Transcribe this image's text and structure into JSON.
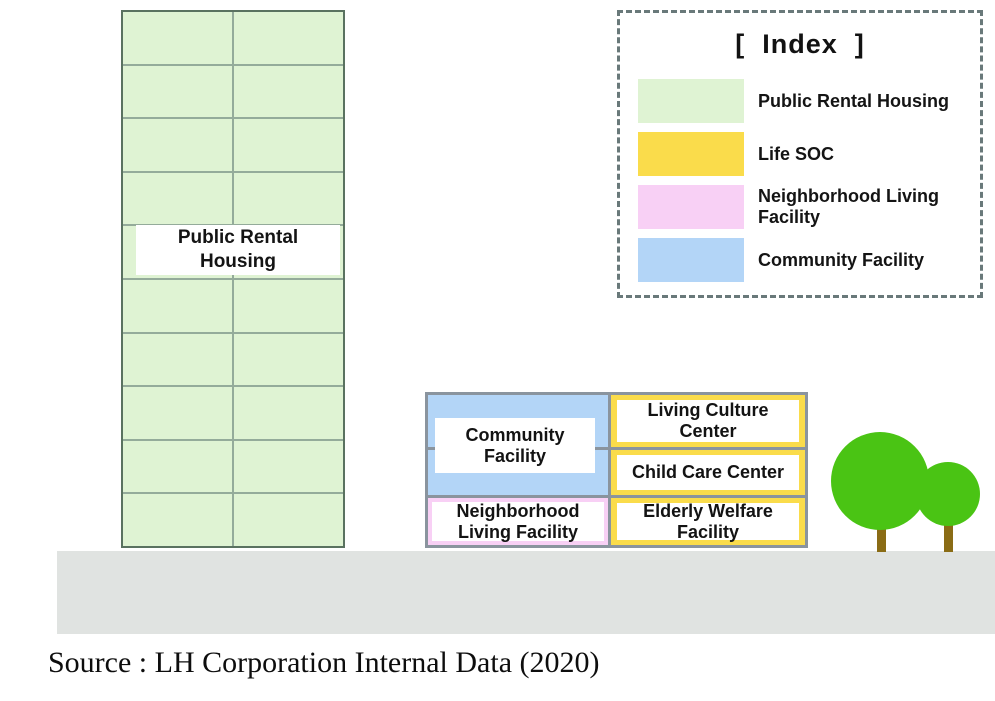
{
  "tower": {
    "label": "Public Rental\nHousing",
    "floors": 10,
    "units_per_floor": 2,
    "unit_color": "#dff3d3",
    "grid_line_color": "#94ab9a",
    "border_color": "#5a7260"
  },
  "legend": {
    "title": "[  Index  ]",
    "items": [
      {
        "name": "public-rental-housing",
        "color": "#dff3d3",
        "label": "Public Rental Housing"
      },
      {
        "name": "life-soc",
        "color": "#fadc4b",
        "label": "Life SOC"
      },
      {
        "name": "neighborhood-living-facility",
        "color": "#f8d0f5",
        "label": "Neighborhood Living\nFacility"
      },
      {
        "name": "community-facility",
        "color": "#b3d5f7",
        "label": "Community Facility"
      }
    ]
  },
  "facility": {
    "community": {
      "label": "Community\nFacility",
      "color": "#b3d5f7"
    },
    "living_culture": {
      "label": "Living Culture\nCenter",
      "color": "#fadc4b"
    },
    "child_care": {
      "label": "Child Care Center",
      "color": "#fadc4b"
    },
    "elderly_welfare": {
      "label": "Elderly Welfare\nFacility",
      "color": "#fadc4b"
    },
    "neighborhood": {
      "label": "Neighborhood\nLiving Facility",
      "color": "#f8d0f5"
    },
    "border_color": "#8a949e"
  },
  "trees": {
    "canopy_color": "#4ac414",
    "trunk_color": "#8a6c15"
  },
  "ground": {
    "color": "#e0e3e1"
  },
  "source": {
    "text": "Source : LH Corporation Internal Data (2020)"
  }
}
